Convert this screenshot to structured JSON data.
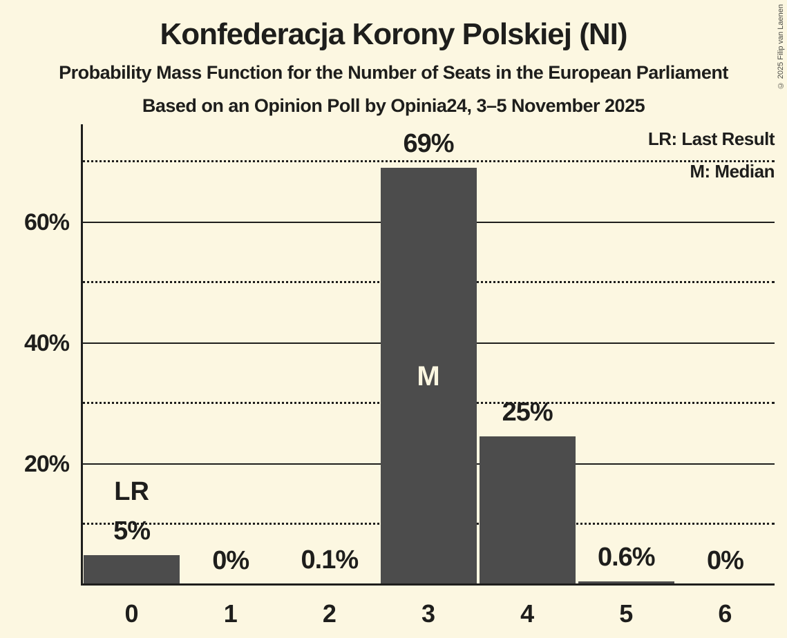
{
  "header": {
    "title": "Konfederacja Korony Polskiej (NI)",
    "subtitle": "Probability Mass Function for the Number of Seats in the European Parliament",
    "source": "Based on an Opinion Poll by Opinia24, 3–5 November 2025"
  },
  "copyright_note": "© 2025 Filip van Laenen",
  "legend": {
    "lr": "LR: Last Result",
    "m": "M: Median"
  },
  "colors": {
    "background": "#FCF7E1",
    "bar": "#4C4C4C",
    "text": "#1E1E1C",
    "inside_label": "#FCF7E1",
    "copyright": "#4B4B45"
  },
  "chart_data": {
    "type": "bar",
    "title": "Konfederacja Korony Polskiej (NI)",
    "subtitle": "Probability Mass Function for the Number of Seats in the European Parliament",
    "source_line": "Based on an Opinion Poll by Opinia24, 3–5 November 2025",
    "categories": [
      "0",
      "1",
      "2",
      "3",
      "4",
      "5",
      "6"
    ],
    "values": [
      4.9,
      0,
      0.1,
      69,
      24.6,
      0.6,
      0
    ],
    "value_labels": [
      "5%",
      "0%",
      "0.1%",
      "69%",
      "25%",
      "0.6%",
      "0%"
    ],
    "ylim": [
      0,
      76.2
    ],
    "yticks_solid": [
      {
        "value": 20,
        "label": "20%"
      },
      {
        "value": 40,
        "label": "40%"
      },
      {
        "value": 60,
        "label": "60%"
      }
    ],
    "yticks_dotted": [
      10,
      30,
      50,
      70
    ],
    "grid": "horizontal",
    "legend_position": "top-right",
    "legend_entries": [
      "LR: Last Result",
      "M: Median"
    ],
    "annotations": [
      {
        "bar_index": 0,
        "text": "LR",
        "meaning": "Last Result",
        "position": "above"
      },
      {
        "bar_index": 3,
        "text": "M",
        "meaning": "Median",
        "position": "inside"
      }
    ]
  }
}
